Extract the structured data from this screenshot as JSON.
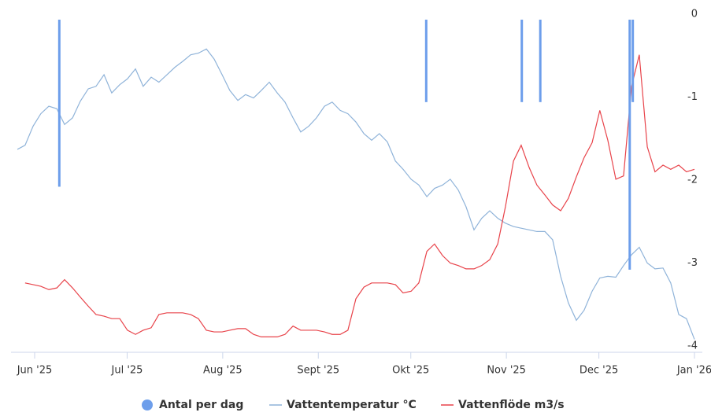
{
  "chart_data": {
    "type": "combo",
    "xlim": [
      -6,
      214
    ],
    "xticks": [
      {
        "value": 0,
        "label": "Jun '25"
      },
      {
        "value": 30,
        "label": "Jul '25"
      },
      {
        "value": 61,
        "label": "Aug '25"
      },
      {
        "value": 92,
        "label": "Sept '25"
      },
      {
        "value": 122,
        "label": "Okt '25"
      },
      {
        "value": 153,
        "label": "Nov '25"
      },
      {
        "value": 183,
        "label": "Dec '25"
      },
      {
        "value": 214,
        "label": "Jan '26"
      }
    ],
    "ylim": [
      -4,
      0
    ],
    "yticks": [
      0,
      -1,
      -2,
      -3,
      -4
    ],
    "legend": "bottom",
    "x": [
      -5.6,
      -3.1,
      -0.5,
      2.0,
      4.6,
      7.2,
      9.7,
      12.3,
      14.8,
      17.4,
      19.9,
      22.5,
      25.0,
      27.6,
      30.1,
      32.7,
      35.2,
      37.8,
      40.3,
      42.9,
      45.5,
      48.0,
      50.6,
      53.1,
      55.7,
      58.2,
      60.8,
      63.3,
      65.9,
      68.4,
      71.0,
      73.5,
      76.1,
      78.7,
      81.2,
      83.8,
      86.3,
      88.9,
      91.4,
      94.0,
      96.5,
      99.1,
      101.6,
      104.2,
      106.8,
      109.3,
      111.8,
      114.4,
      117.0,
      119.5,
      122.1,
      124.6,
      127.2,
      129.7,
      132.3,
      134.8,
      137.4,
      139.9,
      142.5,
      145.0,
      147.6,
      150.2,
      152.7,
      155.3,
      157.8,
      160.4,
      162.9,
      165.5,
      168.0,
      170.6,
      173.1,
      175.7,
      178.2,
      180.8,
      183.3,
      185.9,
      188.5,
      191.0,
      193.6,
      196.1,
      198.7,
      201.2,
      203.8,
      206.3,
      208.9,
      211.4,
      214.0
    ],
    "series": [
      {
        "name": "Antal per dag",
        "type": "bar",
        "color": "#6d9eeb",
        "x": [
          8,
          127,
          158,
          164,
          193,
          194
        ],
        "values": [
          -2.08,
          -1.06,
          -1.06,
          -1.06,
          -3.08,
          -1.06
        ]
      },
      {
        "name": "Vattentemperatur °C",
        "type": "line",
        "color": "#8fb3d9",
        "values": [
          -1.63,
          -1.58,
          -1.35,
          -1.2,
          -1.11,
          -1.14,
          -1.33,
          -1.25,
          -1.05,
          -0.9,
          -0.87,
          -0.73,
          -0.95,
          -0.85,
          -0.78,
          -0.66,
          -0.87,
          -0.76,
          -0.82,
          -0.73,
          -0.64,
          -0.57,
          -0.49,
          -0.47,
          -0.42,
          -0.54,
          -0.73,
          -0.92,
          -1.04,
          -0.97,
          -1.01,
          -0.92,
          -0.82,
          -0.95,
          -1.06,
          -1.25,
          -1.42,
          -1.35,
          -1.25,
          -1.11,
          -1.06,
          -1.16,
          -1.2,
          -1.3,
          -1.44,
          -1.52,
          -1.44,
          -1.54,
          -1.77,
          -1.87,
          -1.99,
          -2.06,
          -2.2,
          -2.1,
          -2.06,
          -1.99,
          -2.12,
          -2.32,
          -2.6,
          -2.46,
          -2.37,
          -2.46,
          -2.52,
          -2.56,
          -2.58,
          -2.6,
          -2.62,
          -2.62,
          -2.72,
          -3.16,
          -3.48,
          -3.69,
          -3.57,
          -3.34,
          -3.18,
          -3.16,
          -3.17,
          -3.03,
          -2.9,
          -2.81,
          -3.0,
          -3.07,
          -3.06,
          -3.24,
          -3.62,
          -3.67,
          -3.92
        ]
      },
      {
        "name": "Vattenflöde m3/s",
        "type": "line",
        "color": "#e8434a",
        "values": [
          null,
          -3.24,
          -3.26,
          -3.28,
          -3.32,
          -3.3,
          -3.2,
          -3.3,
          -3.41,
          -3.52,
          -3.62,
          -3.64,
          -3.67,
          -3.67,
          -3.81,
          -3.86,
          -3.81,
          -3.78,
          -3.62,
          -3.6,
          -3.6,
          -3.6,
          -3.62,
          -3.67,
          -3.81,
          -3.83,
          -3.83,
          -3.81,
          -3.79,
          -3.79,
          -3.86,
          -3.89,
          -3.89,
          -3.89,
          -3.86,
          -3.76,
          -3.81,
          -3.81,
          -3.81,
          -3.83,
          -3.86,
          -3.86,
          -3.81,
          -3.43,
          -3.29,
          -3.24,
          -3.24,
          -3.24,
          -3.26,
          -3.36,
          -3.34,
          -3.24,
          -2.86,
          -2.77,
          -2.91,
          -3.0,
          -3.03,
          -3.07,
          -3.07,
          -3.03,
          -2.96,
          -2.77,
          -2.32,
          -1.77,
          -1.58,
          -1.85,
          -2.06,
          -2.18,
          -2.3,
          -2.37,
          -2.22,
          -1.96,
          -1.73,
          -1.55,
          -1.16,
          -1.52,
          -1.99,
          -1.95,
          -0.87,
          -0.49,
          -1.6,
          -1.9,
          -1.82,
          -1.87,
          -1.82,
          -1.9,
          -1.87
        ]
      }
    ]
  }
}
